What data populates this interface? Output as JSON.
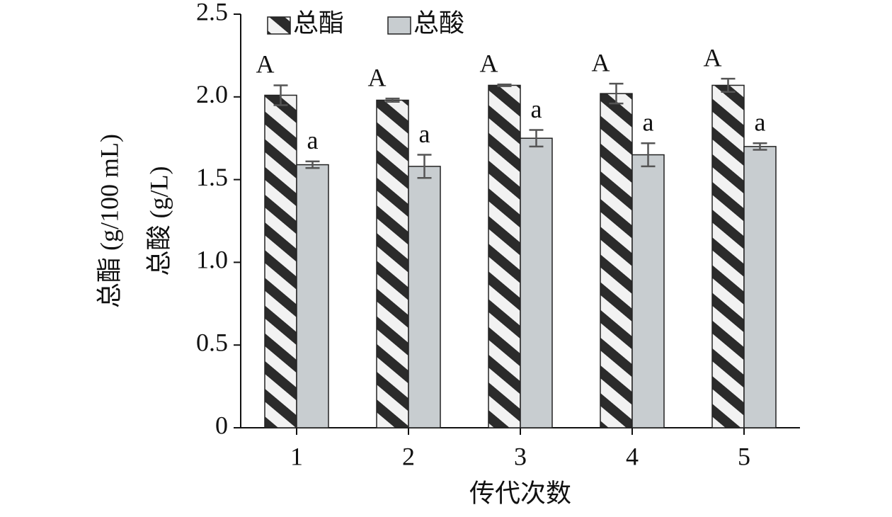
{
  "chart_data": {
    "type": "bar",
    "categories": [
      "1",
      "2",
      "3",
      "4",
      "5"
    ],
    "x_label": "传代次数",
    "y_label_lines": [
      "总酯 (g/100 mL)",
      "总酸 (g/L)"
    ],
    "ylim": [
      0,
      2.5
    ],
    "yticks": [
      0,
      0.5,
      {
        "value": 1,
        "label": "1.0"
      },
      1.5,
      {
        "value": 2,
        "label": "2.0"
      },
      2.5
    ],
    "series": [
      {
        "name": "总酯",
        "color": "#2b2b2b",
        "pattern": "hatch",
        "values": [
          2.01,
          1.98,
          2.07,
          2.02,
          2.07
        ],
        "errors": [
          0.06,
          0.01,
          0.005,
          0.06,
          0.04
        ],
        "labels": [
          "A",
          "A",
          "A",
          "A",
          "A"
        ]
      },
      {
        "name": "总酸",
        "color": "#c8cdd0",
        "values": [
          1.59,
          1.58,
          1.75,
          1.65,
          1.7
        ],
        "errors": [
          0.02,
          0.07,
          0.05,
          0.07,
          0.02
        ],
        "labels": [
          "a",
          "a",
          "a",
          "a",
          "a"
        ]
      }
    ]
  }
}
